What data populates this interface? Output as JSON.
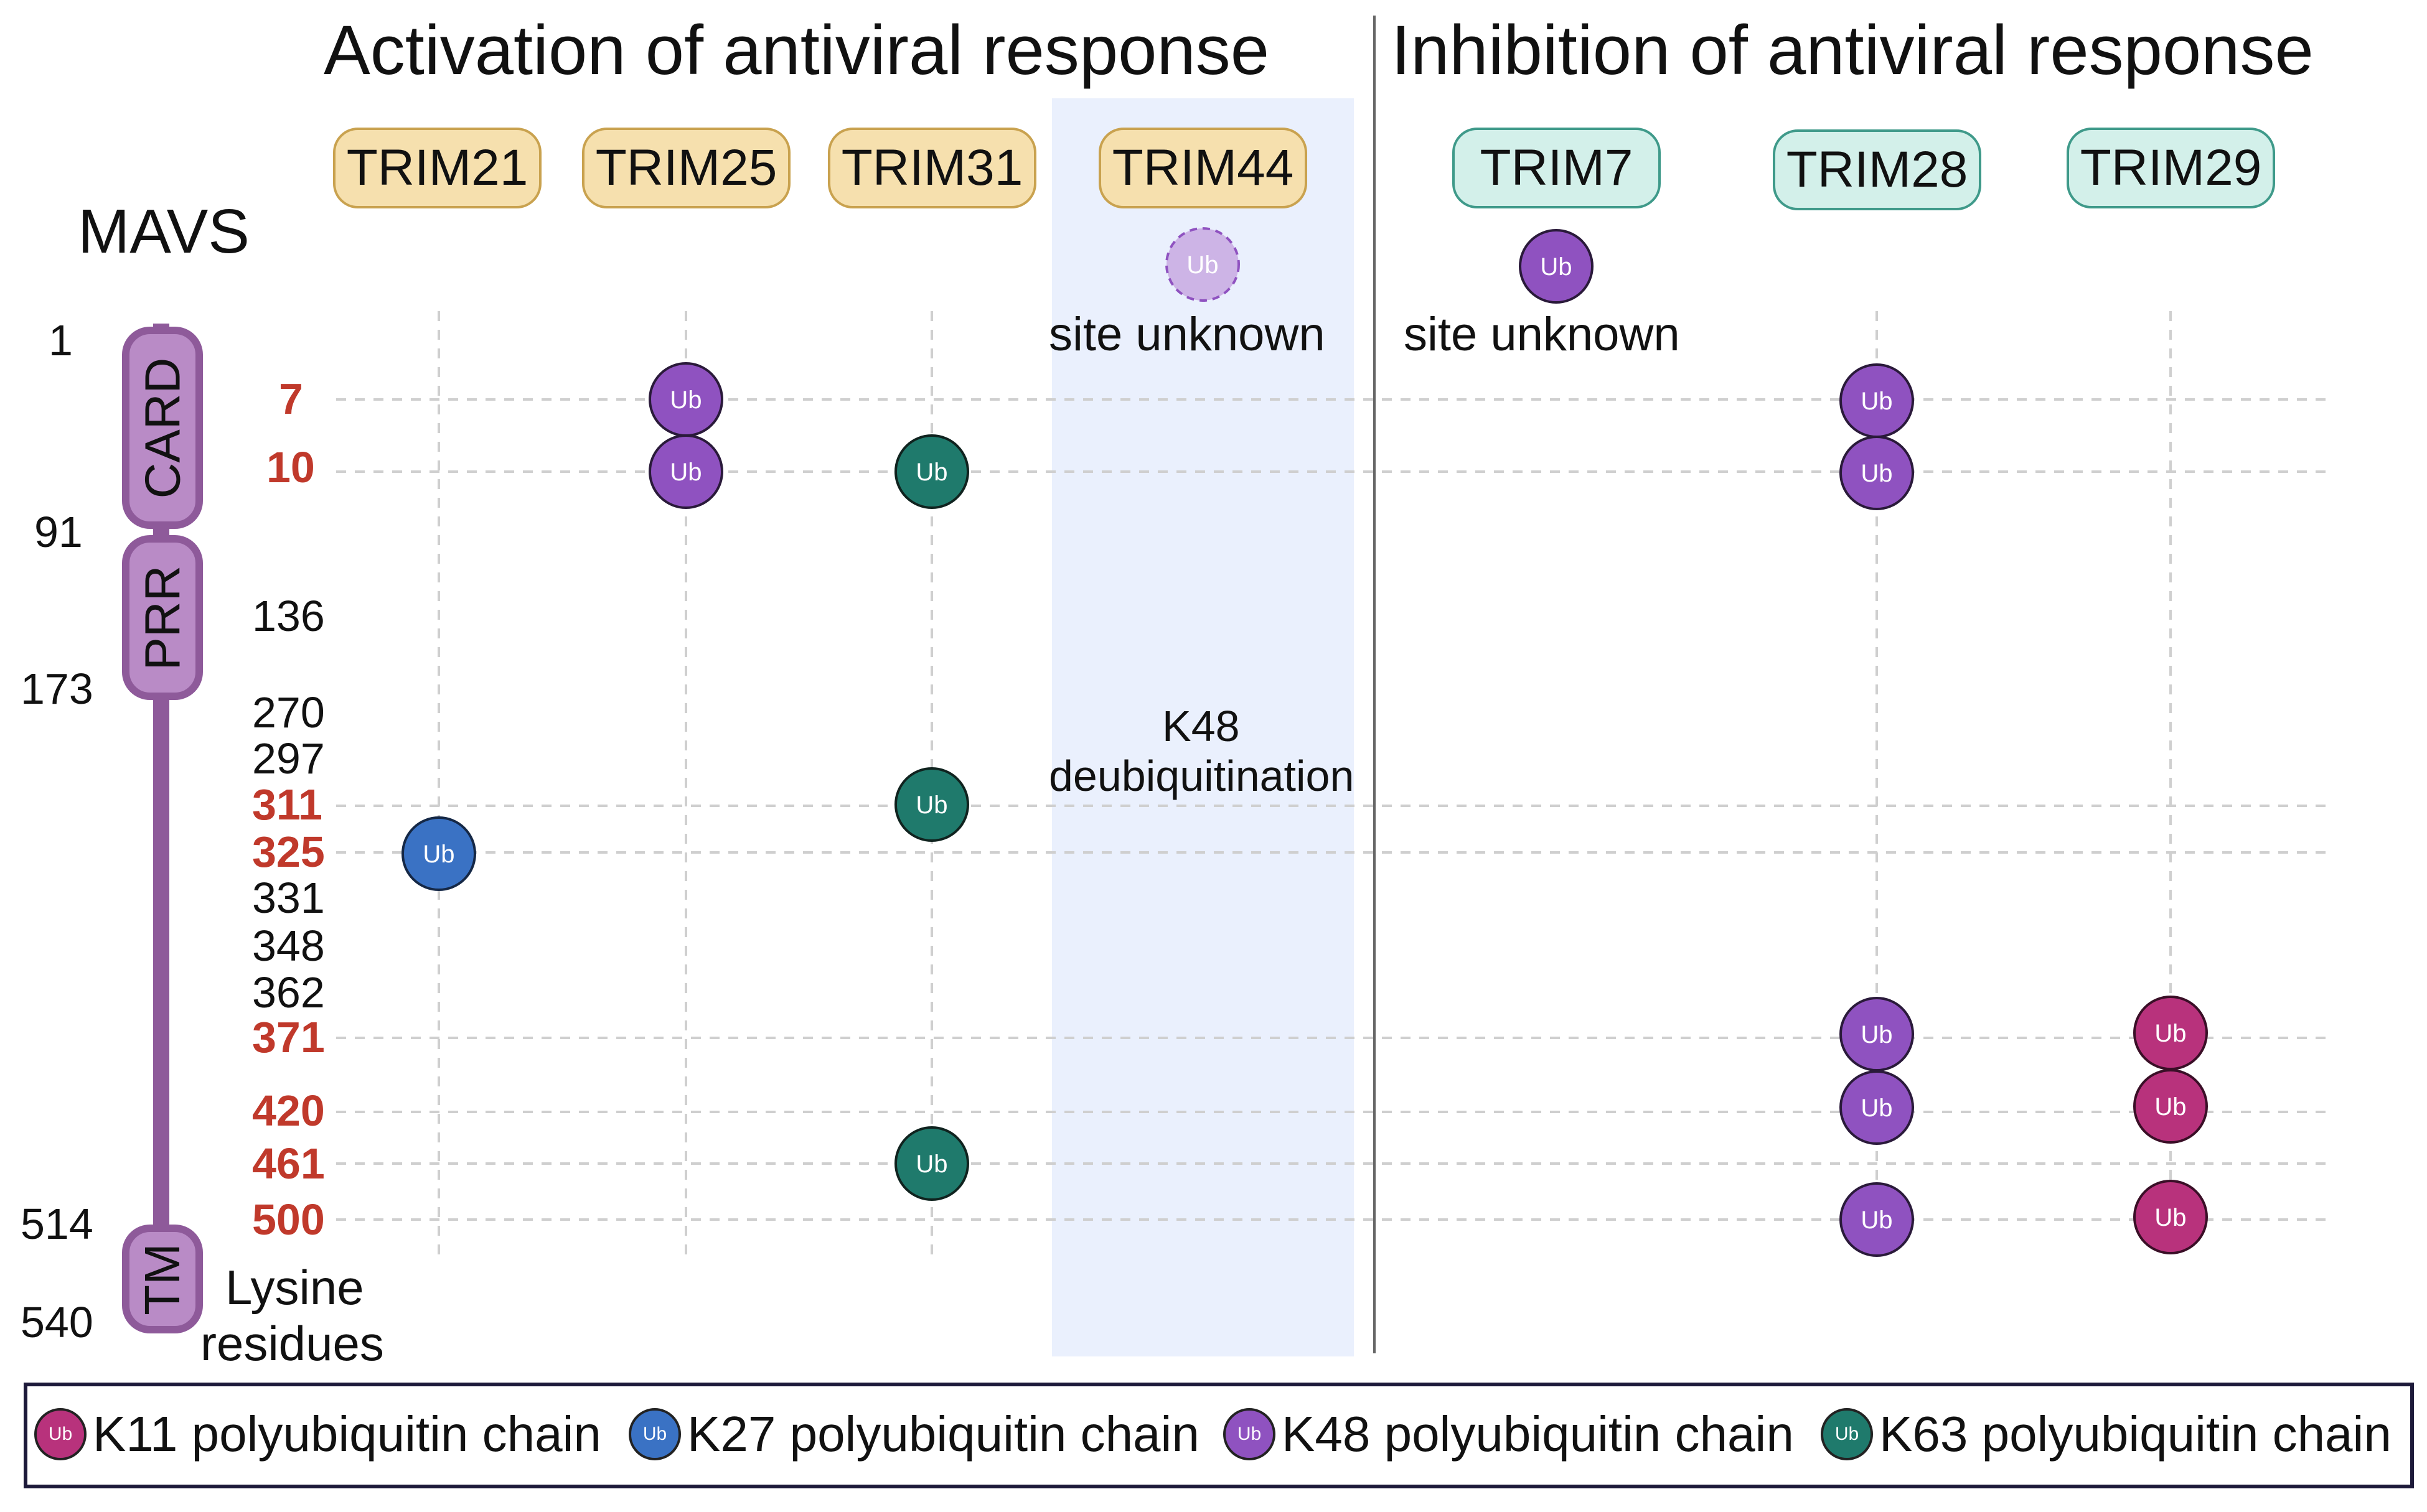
{
  "colors": {
    "k11": "#b8327c",
    "k27": "#3a72c4",
    "k48": "#8f52c0",
    "k63": "#1f7a6c",
    "faded": "#cdb4e6",
    "red_residue": "#c0392b",
    "mavs_bar": "#8e5a9a",
    "mavs_domain_fill": "#b98bc6",
    "highlight_column": "#eaf0fd"
  },
  "titles": {
    "activation": "Activation of antiviral response",
    "inhibition": "Inhibition of antiviral response"
  },
  "trims": {
    "trim21": "TRIM21",
    "trim25": "TRIM25",
    "trim31": "TRIM31",
    "trim44": "TRIM44",
    "trim7": "TRIM7",
    "trim28": "TRIM28",
    "trim29": "TRIM29"
  },
  "mavs": {
    "label": "MAVS",
    "domains": {
      "card": "CARD",
      "prr": "PRR",
      "tm": "TM"
    },
    "boundaries": {
      "b1": "1",
      "b91": "91",
      "b173": "173",
      "b514": "514",
      "b540": "540"
    }
  },
  "residues": {
    "r7": "7",
    "r10": "10",
    "r136": "136",
    "r270": "270",
    "r297": "297",
    "r311": "311",
    "r325": "325",
    "r331": "331",
    "r348": "348",
    "r362": "362",
    "r371": "371",
    "r420": "420",
    "r461": "461",
    "r500": "500"
  },
  "residues_caption": {
    "line1": "Lysine",
    "line2": "residues"
  },
  "notes": {
    "trim44_site": "site unknown",
    "trim7_site": "site unknown",
    "trim44_line1": "K48",
    "trim44_line2": "deubiquitination"
  },
  "ub_label": "Ub",
  "ubiquitin_sites": [
    {
      "trim": "TRIM25",
      "residue": 7,
      "chain": "K48"
    },
    {
      "trim": "TRIM25",
      "residue": 10,
      "chain": "K48"
    },
    {
      "trim": "TRIM31",
      "residue": 10,
      "chain": "K63"
    },
    {
      "trim": "TRIM31",
      "residue": 311,
      "chain": "K63"
    },
    {
      "trim": "TRIM31",
      "residue": 461,
      "chain": "K63"
    },
    {
      "trim": "TRIM21",
      "residue": 325,
      "chain": "K27"
    },
    {
      "trim": "TRIM28",
      "residue": 7,
      "chain": "K48"
    },
    {
      "trim": "TRIM28",
      "residue": 10,
      "chain": "K48"
    },
    {
      "trim": "TRIM28",
      "residue": 371,
      "chain": "K48"
    },
    {
      "trim": "TRIM28",
      "residue": 420,
      "chain": "K48"
    },
    {
      "trim": "TRIM28",
      "residue": 500,
      "chain": "K48"
    },
    {
      "trim": "TRIM29",
      "residue": 371,
      "chain": "K11"
    },
    {
      "trim": "TRIM29",
      "residue": 420,
      "chain": "K11"
    },
    {
      "trim": "TRIM29",
      "residue": 500,
      "chain": "K11"
    },
    {
      "trim": "TRIM7",
      "residue": "site unknown",
      "chain": "K48"
    },
    {
      "trim": "TRIM44",
      "residue": "site unknown",
      "chain": "K48 deubiquitination"
    }
  ],
  "legend": {
    "k11": "K11 polyubiquitin chain",
    "k27": "K27 polyubiquitin chain",
    "k48": "K48 polyubiquitin chain",
    "k63": "K63 polyubiquitin chain"
  }
}
